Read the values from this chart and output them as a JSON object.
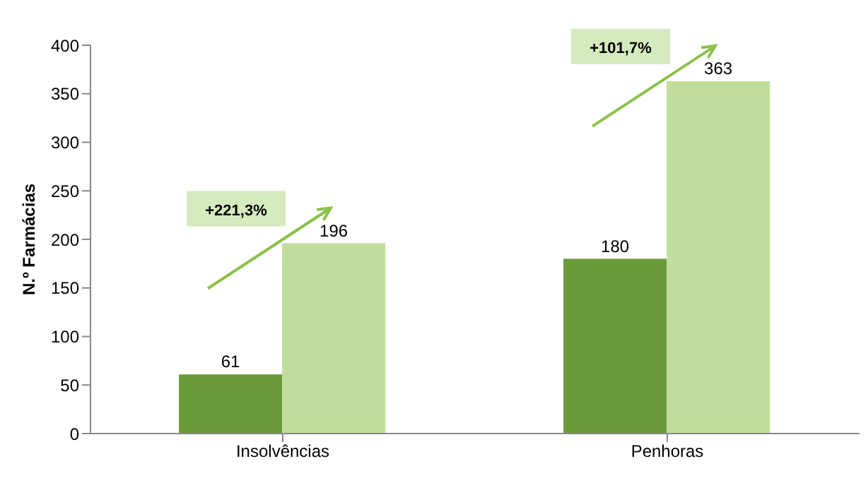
{
  "chart_data": {
    "type": "bar",
    "ylabel": "N.º Farmácias",
    "categories": [
      "Insolvências",
      "Penhoras"
    ],
    "series": [
      {
        "color": "#6b9a38",
        "values": [
          61,
          180
        ]
      },
      {
        "color": "#c1dd9b",
        "values": [
          196,
          363
        ]
      }
    ],
    "ylim": [
      0,
      400
    ],
    "yticks": [
      0,
      50,
      100,
      150,
      200,
      250,
      300,
      350,
      400
    ],
    "grid": false,
    "legend": false,
    "data_labels": true,
    "annotations": [
      "+221,3%",
      "+101,7%"
    ]
  }
}
